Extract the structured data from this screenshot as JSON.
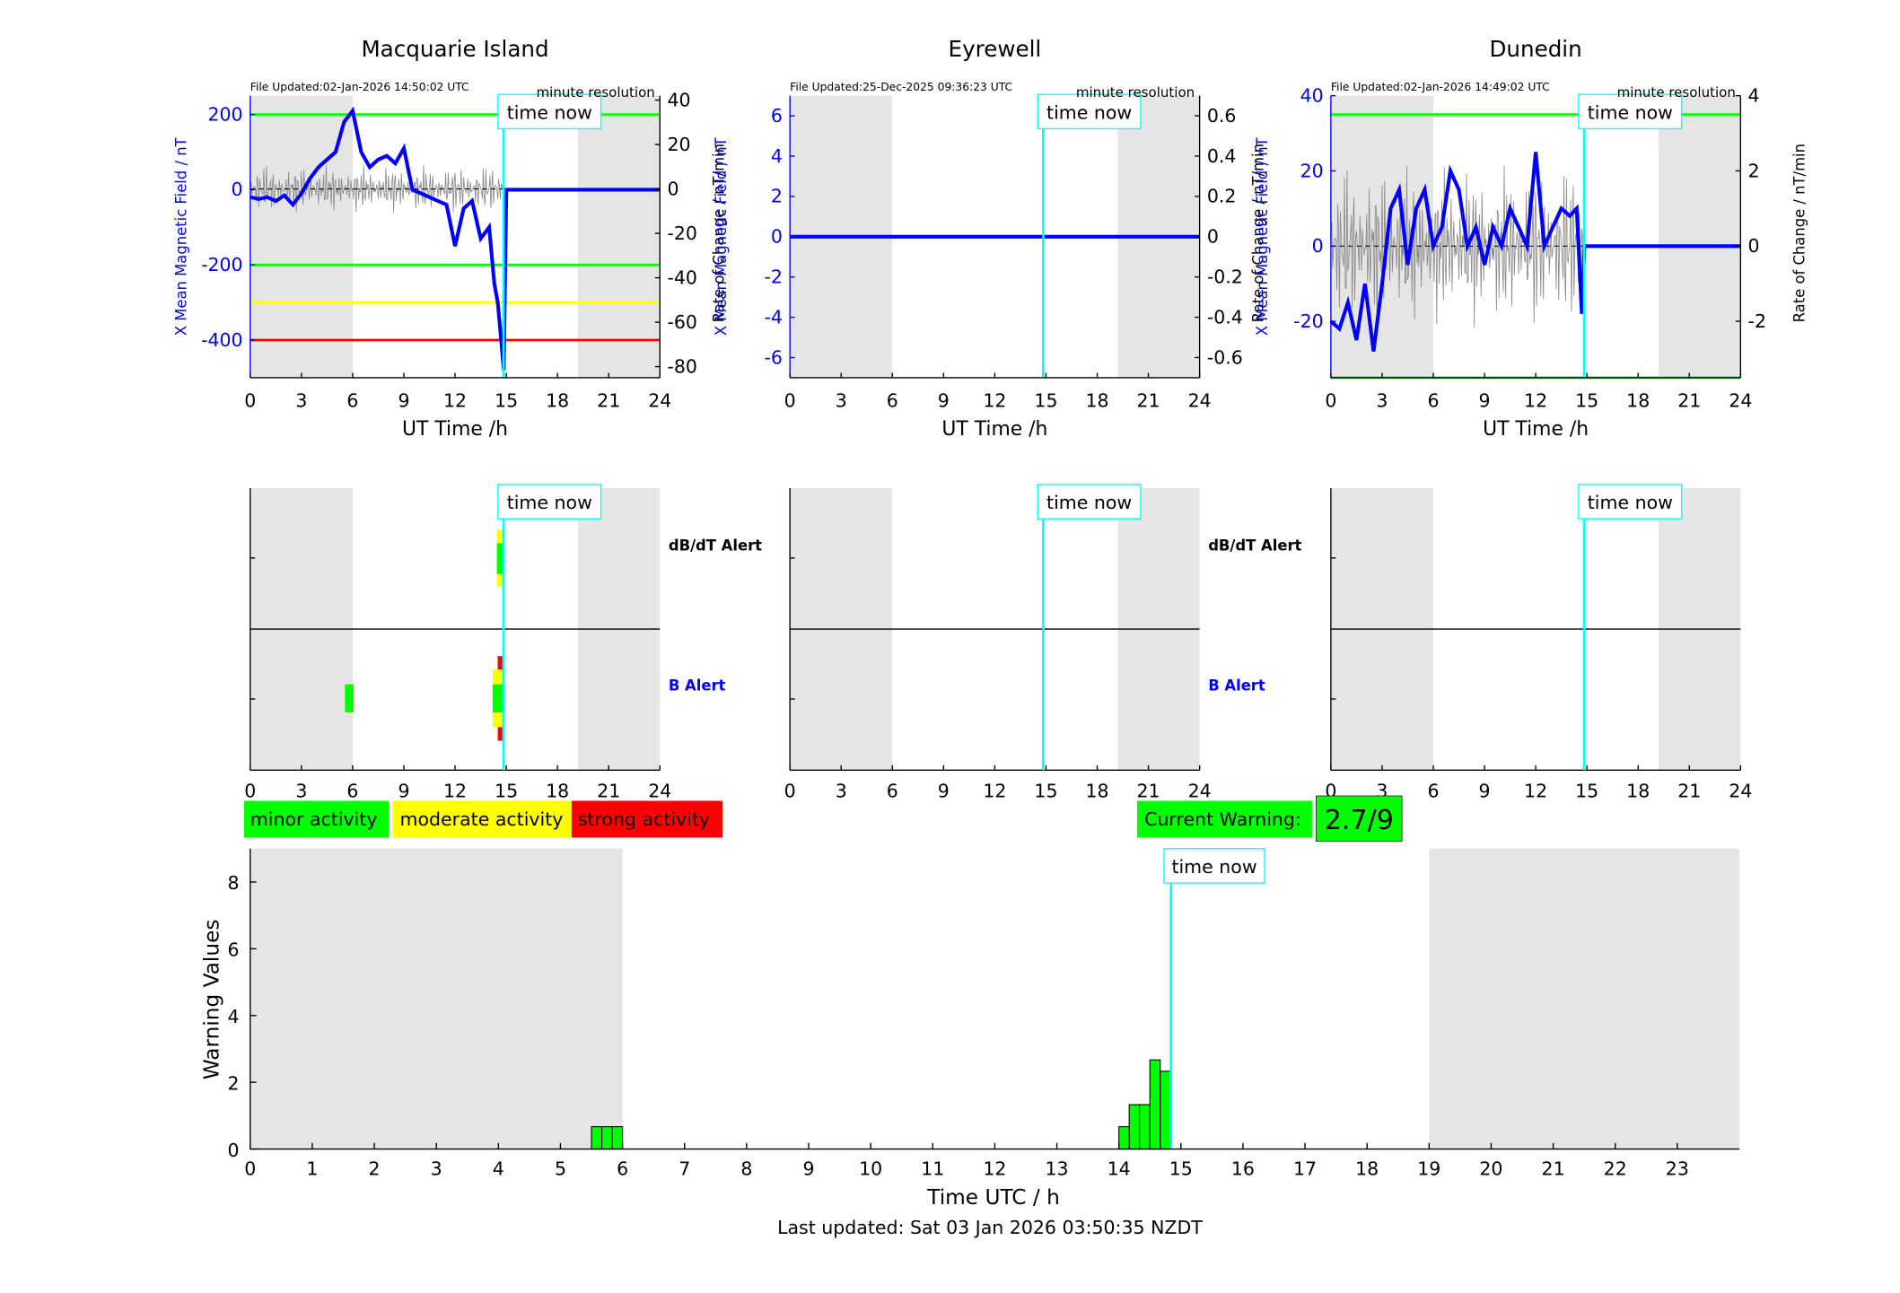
{
  "stations": [
    {
      "name": "Macquarie Island",
      "file_updated": "File Updated:02-Jan-2026 14:50:02 UTC",
      "resolution": "minute resolution",
      "left_ylabel": "X Mean Magnetic Field / nT",
      "right_ylabel": "Rate of Change / nT/min",
      "xlabel": "UT Time /h",
      "left_ticks": [
        "200",
        "0",
        "-200",
        "-400"
      ],
      "right_ticks": [
        "40",
        "20",
        "0",
        "-20",
        "-40",
        "-60",
        "-80"
      ],
      "time_now_label": "time now",
      "alert_labels": {
        "dbdt": "dB/dT Alert",
        "b": "B Alert"
      }
    },
    {
      "name": "Eyrewell",
      "file_updated": "File Updated:25-Dec-2025 09:36:23 UTC",
      "resolution": "minute resolution",
      "left_ylabel": "X Mean Magnetic Field / nT",
      "right_ylabel": "Rate of Change / nT/min",
      "xlabel": "UT Time /h",
      "left_ticks": [
        "6",
        "4",
        "2",
        "0",
        "-2",
        "-4",
        "-6"
      ],
      "right_ticks": [
        "0.6",
        "0.4",
        "0.2",
        "0",
        "-0.2",
        "-0.4",
        "-0.6"
      ],
      "time_now_label": "time now",
      "alert_labels": {
        "dbdt": "dB/dT Alert",
        "b": "B Alert"
      }
    },
    {
      "name": "Dunedin",
      "file_updated": "File Updated:02-Jan-2026 14:49:02 UTC",
      "resolution": "minute resolution",
      "left_ylabel": "X Mean Magnetic Field / nT",
      "right_ylabel": "Rate of Change / nT/min",
      "xlabel": "UT Time /h",
      "left_ticks": [
        "40",
        "20",
        "0",
        "-20"
      ],
      "right_ticks": [
        "4",
        "2",
        "0",
        "-2"
      ],
      "time_now_label": "time now",
      "alert_labels": {
        "dbdt": "",
        "b": ""
      }
    }
  ],
  "x_ticks": [
    "0",
    "3",
    "6",
    "9",
    "12",
    "15",
    "18",
    "21",
    "24"
  ],
  "legend": {
    "minor": "minor activity",
    "moderate": "moderate activity",
    "strong": "strong activity"
  },
  "current_warning": {
    "label": "Current Warning:",
    "value": "2.7/9"
  },
  "colors": {
    "minor": "#00ff00",
    "moderate": "#ffff00",
    "strong": "#ff0000",
    "time_now": "#00ffff",
    "field_line": "#0000ff",
    "night_shade": "#e5e5e5"
  },
  "chart_data": [
    {
      "type": "line",
      "station": "Macquarie Island",
      "xlim": [
        0,
        24
      ],
      "ylim_left": [
        -500,
        250
      ],
      "ylim_right": [
        -85,
        42
      ],
      "x_hours": [
        0,
        0.5,
        1,
        1.5,
        2,
        2.5,
        3,
        3.5,
        4,
        4.5,
        5,
        5.5,
        6,
        6.5,
        7,
        7.5,
        8,
        8.5,
        9,
        9.5,
        10,
        10.5,
        11,
        11.5,
        12,
        12.5,
        13,
        13.5,
        14,
        14.3,
        14.5,
        14.7,
        14.85,
        15,
        24
      ],
      "field_nT": [
        -20,
        -25,
        -20,
        -30,
        -15,
        -40,
        -10,
        30,
        60,
        80,
        100,
        180,
        210,
        100,
        60,
        80,
        90,
        70,
        110,
        0,
        -10,
        -20,
        -30,
        -40,
        -150,
        -50,
        -30,
        -130,
        -100,
        -250,
        -300,
        -400,
        -480,
        0,
        0
      ],
      "thresholds_nT": [
        200,
        -200,
        -300,
        -400
      ],
      "threshold_colors": [
        "#00ff00",
        "#00ff00",
        "#ffff00",
        "#ff0000"
      ],
      "night_shading_hours": [
        [
          0,
          6
        ],
        [
          19.2,
          24
        ]
      ],
      "time_now_hour": 14.84
    },
    {
      "type": "line",
      "station": "Eyrewell",
      "xlim": [
        0,
        24
      ],
      "ylim_left": [
        -7,
        7
      ],
      "ylim_right": [
        -0.7,
        0.7
      ],
      "x_hours": [
        0,
        24
      ],
      "field_nT": [
        0,
        0
      ],
      "night_shading_hours": [
        [
          0,
          6
        ],
        [
          19.2,
          24
        ]
      ],
      "time_now_hour": 14.84
    },
    {
      "type": "line",
      "station": "Dunedin",
      "xlim": [
        0,
        24
      ],
      "ylim_left": [
        -35,
        40
      ],
      "ylim_right": [
        -3.5,
        4
      ],
      "x_hours": [
        0,
        0.5,
        1,
        1.5,
        2,
        2.5,
        3,
        3.5,
        4,
        4.5,
        5,
        5.5,
        6,
        6.5,
        7,
        7.5,
        8,
        8.5,
        9,
        9.5,
        10,
        10.5,
        11,
        11.5,
        12,
        12.5,
        13,
        13.5,
        14,
        14.4,
        14.7,
        14.85,
        15,
        24
      ],
      "field_nT": [
        -20,
        -22,
        -15,
        -25,
        -10,
        -28,
        -10,
        10,
        15,
        -5,
        10,
        15,
        0,
        5,
        20,
        15,
        0,
        5,
        -5,
        5,
        0,
        10,
        5,
        0,
        25,
        0,
        5,
        10,
        8,
        10,
        -18,
        0,
        0,
        0
      ],
      "thresholds_nT": [
        35,
        -35
      ],
      "threshold_colors": [
        "#00ff00",
        "#00ff00"
      ],
      "night_shading_hours": [
        [
          0,
          6
        ],
        [
          19.2,
          24
        ]
      ],
      "time_now_hour": 14.84
    },
    {
      "type": "bar",
      "title": "",
      "xlabel": "Time UTC / h",
      "ylabel": "Warning Values",
      "xlim": [
        0,
        24
      ],
      "ylim": [
        0,
        9
      ],
      "x_ticks": [
        0,
        1,
        2,
        3,
        4,
        5,
        6,
        7,
        8,
        9,
        10,
        11,
        12,
        13,
        14,
        15,
        16,
        17,
        18,
        19,
        20,
        21,
        22,
        23
      ],
      "y_ticks": [
        0,
        2,
        4,
        6,
        8
      ],
      "bin_width_hours": 0.1667,
      "bins_start_hours": [
        5.5,
        5.667,
        5.833,
        14.0,
        14.167,
        14.333,
        14.5,
        14.667
      ],
      "values": [
        0.67,
        0.67,
        0.67,
        0.67,
        1.33,
        1.33,
        2.67,
        2.33
      ],
      "night_shading_hours": [
        [
          0,
          6
        ],
        [
          19,
          24
        ]
      ],
      "time_now_hour": 14.84
    }
  ],
  "footer": "Last updated: Sat 03 Jan 2026 03:50:35 NZDT"
}
